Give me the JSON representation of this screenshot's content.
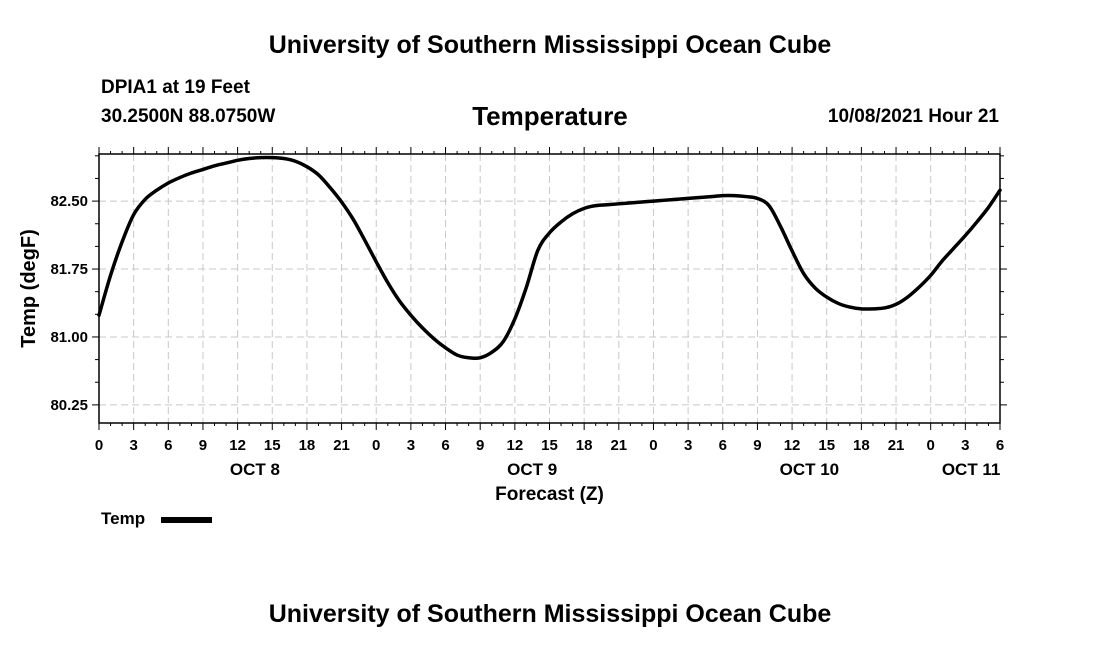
{
  "page": {
    "title_top": "University of Southern Mississippi Ocean Cube",
    "title_bottom": "University of Southern Mississippi Ocean Cube",
    "station": "DPIA1 at 19 Feet",
    "coords": "30.2500N  88.0750W",
    "chart_title": "Temperature",
    "datetime": "10/08/2021 Hour 21",
    "legend_label": "Temp"
  },
  "chart_data": {
    "type": "line",
    "title": "Temperature",
    "xlabel": "Forecast (Z)",
    "ylabel": "Temp (degF)",
    "x_unit": "hours since 2021-10-08 00Z",
    "xlim": [
      0,
      78
    ],
    "ylim": [
      80.05,
      83.02
    ],
    "y_ticks": [
      80.25,
      81.0,
      81.75,
      82.5
    ],
    "y_tick_labels": [
      "80.25",
      "81.00",
      "81.75",
      "82.50"
    ],
    "x_ticks": [
      0,
      3,
      6,
      9,
      12,
      15,
      18,
      21,
      24,
      27,
      30,
      33,
      36,
      39,
      42,
      45,
      48,
      51,
      54,
      57,
      60,
      63,
      66,
      69,
      72,
      75,
      78
    ],
    "x_tick_labels": [
      "0",
      "3",
      "6",
      "9",
      "12",
      "15",
      "18",
      "21",
      "0",
      "3",
      "6",
      "9",
      "12",
      "15",
      "18",
      "21",
      "0",
      "3",
      "6",
      "9",
      "12",
      "15",
      "18",
      "21",
      "0",
      "3",
      "6"
    ],
    "date_labels": [
      {
        "x": 13.5,
        "label": "OCT 8"
      },
      {
        "x": 37.5,
        "label": "OCT 9"
      },
      {
        "x": 61.5,
        "label": "OCT 10"
      },
      {
        "x": 75.5,
        "label": "OCT 11"
      }
    ],
    "grid": true,
    "series": [
      {
        "name": "Temp",
        "color": "#000000",
        "x": [
          0,
          1,
          2,
          3,
          4,
          5,
          6,
          7,
          8,
          9,
          10,
          11,
          12,
          13,
          14,
          15,
          16,
          17,
          18,
          19,
          20,
          21,
          22,
          23,
          24,
          25,
          26,
          27,
          28,
          29,
          30,
          31,
          32,
          33,
          34,
          35,
          36,
          37,
          38,
          39,
          40,
          41,
          42,
          43,
          44,
          45,
          46,
          47,
          48,
          49,
          50,
          51,
          52,
          53,
          54,
          55,
          56,
          57,
          58,
          59,
          60,
          61,
          62,
          63,
          64,
          65,
          66,
          67,
          68,
          69,
          70,
          71,
          72,
          73,
          74,
          75,
          76,
          77,
          78
        ],
        "values": [
          81.24,
          81.68,
          82.05,
          82.35,
          82.52,
          82.62,
          82.7,
          82.76,
          82.81,
          82.85,
          82.89,
          82.92,
          82.95,
          82.97,
          82.98,
          82.98,
          82.97,
          82.94,
          82.88,
          82.79,
          82.65,
          82.49,
          82.3,
          82.07,
          81.83,
          81.6,
          81.4,
          81.24,
          81.1,
          80.98,
          80.88,
          80.8,
          80.77,
          80.77,
          80.83,
          80.95,
          81.2,
          81.55,
          81.96,
          82.15,
          82.27,
          82.36,
          82.42,
          82.45,
          82.46,
          82.47,
          82.48,
          82.49,
          82.5,
          82.51,
          82.52,
          82.53,
          82.54,
          82.55,
          82.56,
          82.56,
          82.55,
          82.53,
          82.45,
          82.22,
          81.95,
          81.7,
          81.54,
          81.44,
          81.37,
          81.33,
          81.31,
          81.31,
          81.32,
          81.36,
          81.44,
          81.55,
          81.68,
          81.84,
          81.98,
          82.12,
          82.27,
          82.43,
          82.62
        ]
      }
    ]
  }
}
